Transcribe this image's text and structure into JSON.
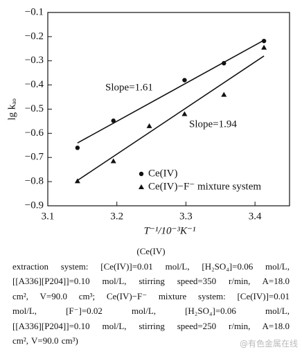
{
  "chart_data": {
    "type": "scatter",
    "x_label": "T⁻¹/10⁻³K⁻¹",
    "y_label": "lg kₐₒ",
    "xlim": [
      3.1,
      3.45
    ],
    "xticks": [
      3.1,
      3.2,
      3.3,
      3.4
    ],
    "ylim": [
      -0.9,
      -0.1
    ],
    "yticks": [
      {
        "value": -0.1,
        "label": "−0.1"
      },
      {
        "value": -0.2,
        "label": "−0.2"
      },
      {
        "value": -0.3,
        "label": "−0.3"
      },
      {
        "value": -0.4,
        "label": "−0.4"
      },
      {
        "value": -0.5,
        "label": "−0.5"
      },
      {
        "value": -0.6,
        "label": "−0.6"
      },
      {
        "value": -0.7,
        "label": "−0.7"
      },
      {
        "value": -0.8,
        "label": "−0.8"
      },
      {
        "value": -0.9,
        "label": "−0.9"
      }
    ],
    "series": [
      {
        "name": "Ce(IV)",
        "marker": "circle",
        "color": "#111111",
        "x": [
          3.143,
          3.195,
          3.298,
          3.355,
          3.413
        ],
        "values": [
          -0.66,
          -0.548,
          -0.38,
          -0.31,
          -0.218
        ]
      },
      {
        "name": "Ce(IV)−F⁻ mixture system",
        "marker": "triangle",
        "color": "#111111",
        "x": [
          3.143,
          3.195,
          3.247,
          3.298,
          3.355,
          3.413
        ],
        "values": [
          -0.798,
          -0.715,
          -0.57,
          -0.52,
          -0.44,
          -0.245
        ]
      }
    ],
    "fit_lines": [
      {
        "x": [
          3.143,
          3.413
        ],
        "values": [
          -0.64,
          -0.215
        ]
      },
      {
        "x": [
          3.143,
          3.413
        ],
        "values": [
          -0.795,
          -0.28
        ]
      }
    ],
    "annotations": [
      "Slope=1.61",
      "Slope=1.94"
    ]
  },
  "caption": {
    "heading": "(Ce(IV)",
    "lines": [
      "extraction system: [Ce(IV)]=0.01 mol/L, [H₂SO₄]=0.06 mol/L,",
      "[[A336][P204]]=0.10 mol/L, stirring speed=350 r/min, A=18.0",
      "cm², V=90.0 cm³; Ce(IV)−F⁻ mixture system: [Ce(IV)]=0.01",
      "mol/L, [F⁻]=0.02 mol/L, [H₂SO₄]=0.06 mol/L,",
      "[[A336][P204]]=0.10 mol/L, stirring speed=250 r/min, A=18.0",
      "cm², V=90.0 cm³)"
    ],
    "watermark": "@有色金属在线"
  }
}
